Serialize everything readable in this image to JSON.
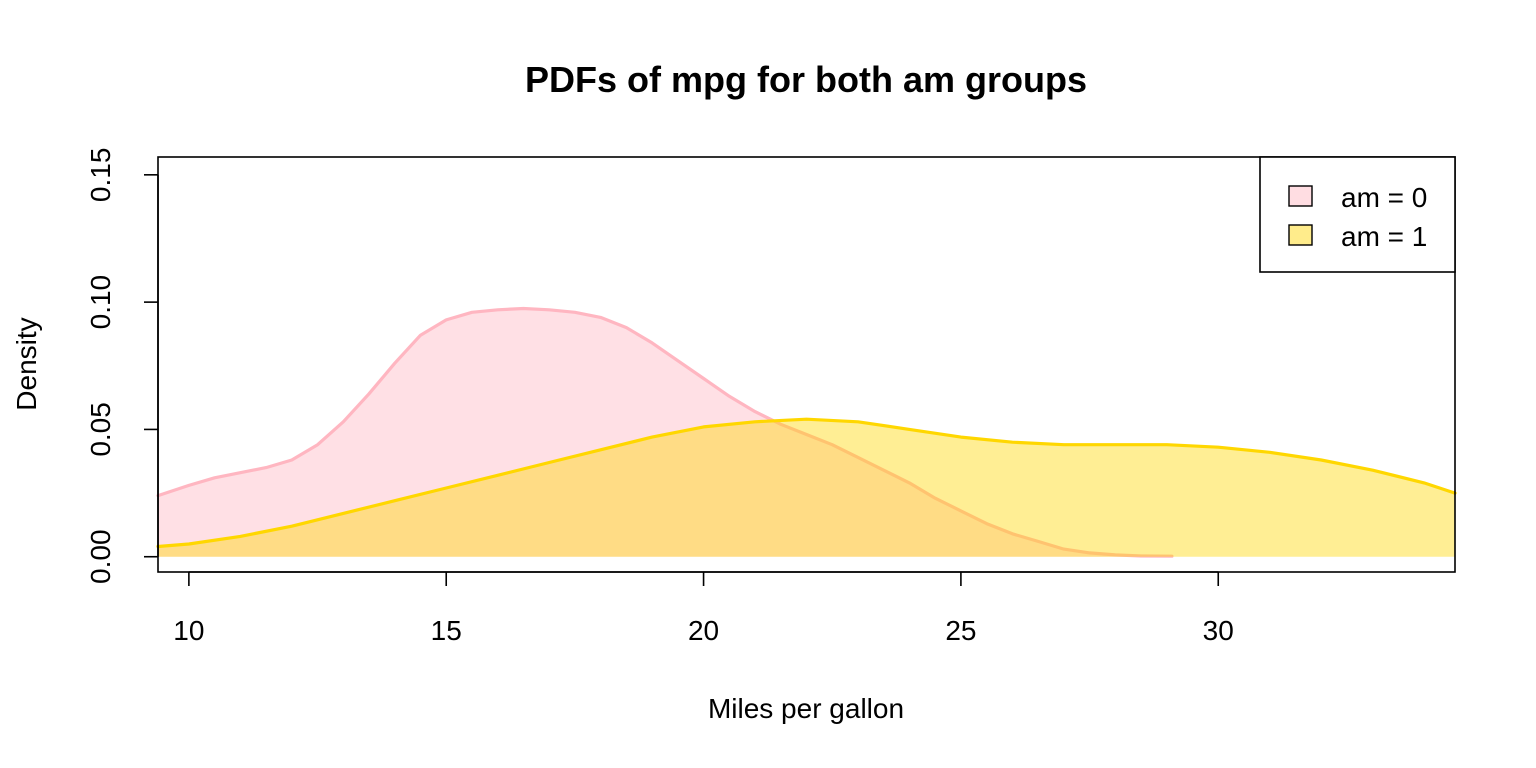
{
  "chart_data": {
    "type": "area",
    "title": "PDFs of mpg for both am groups",
    "xlabel": "Miles per gallon",
    "ylabel": "Density",
    "xlim": [
      9.4,
      34.6
    ],
    "ylim": [
      -0.006,
      0.157
    ],
    "x_ticks": [
      {
        "value": 10,
        "label": "10"
      },
      {
        "value": 15,
        "label": "15"
      },
      {
        "value": 20,
        "label": "20"
      },
      {
        "value": 25,
        "label": "25"
      },
      {
        "value": 30,
        "label": "30"
      }
    ],
    "y_ticks": [
      {
        "value": 0.0,
        "label": "0.00"
      },
      {
        "value": 0.05,
        "label": "0.05"
      },
      {
        "value": 0.1,
        "label": "0.10"
      },
      {
        "value": 0.15,
        "label": "0.15"
      }
    ],
    "grid": false,
    "legend_position": "top-right",
    "series": [
      {
        "name": "am = 0",
        "line_color": "#FFB6C1",
        "fill_color": "rgba(255,182,193,0.42)",
        "legend_fill": "#FFDDE2",
        "x": [
          9.4,
          10.0,
          10.5,
          11.0,
          11.5,
          12.0,
          12.5,
          13.0,
          13.5,
          14.0,
          14.5,
          15.0,
          15.5,
          16.0,
          16.5,
          17.0,
          17.5,
          18.0,
          18.5,
          19.0,
          19.5,
          20.0,
          20.5,
          21.0,
          21.5,
          22.0,
          22.5,
          23.0,
          23.5,
          24.0,
          24.5,
          25.0,
          25.5,
          26.0,
          26.5,
          27.0,
          27.5,
          28.0,
          28.5,
          29.1
        ],
        "y": [
          0.024,
          0.028,
          0.031,
          0.033,
          0.035,
          0.038,
          0.044,
          0.053,
          0.064,
          0.076,
          0.087,
          0.093,
          0.096,
          0.097,
          0.0975,
          0.097,
          0.096,
          0.094,
          0.09,
          0.084,
          0.077,
          0.07,
          0.063,
          0.057,
          0.052,
          0.048,
          0.044,
          0.039,
          0.034,
          0.029,
          0.023,
          0.018,
          0.013,
          0.009,
          0.006,
          0.003,
          0.0015,
          0.0007,
          0.0003,
          0.0002
        ]
      },
      {
        "name": "am = 1",
        "line_color": "#FFD700",
        "fill_color": "rgba(255,215,0,0.42)",
        "legend_fill": "#FFEC8B",
        "x": [
          9.4,
          10.0,
          11.0,
          12.0,
          13.0,
          14.0,
          15.0,
          16.0,
          17.0,
          18.0,
          19.0,
          20.0,
          21.0,
          22.0,
          23.0,
          24.0,
          25.0,
          26.0,
          27.0,
          28.0,
          29.0,
          30.0,
          31.0,
          32.0,
          33.0,
          34.0,
          34.6
        ],
        "y": [
          0.004,
          0.005,
          0.008,
          0.012,
          0.017,
          0.022,
          0.027,
          0.032,
          0.037,
          0.042,
          0.047,
          0.051,
          0.053,
          0.054,
          0.053,
          0.05,
          0.047,
          0.045,
          0.044,
          0.044,
          0.044,
          0.043,
          0.041,
          0.038,
          0.034,
          0.029,
          0.025
        ]
      }
    ]
  }
}
